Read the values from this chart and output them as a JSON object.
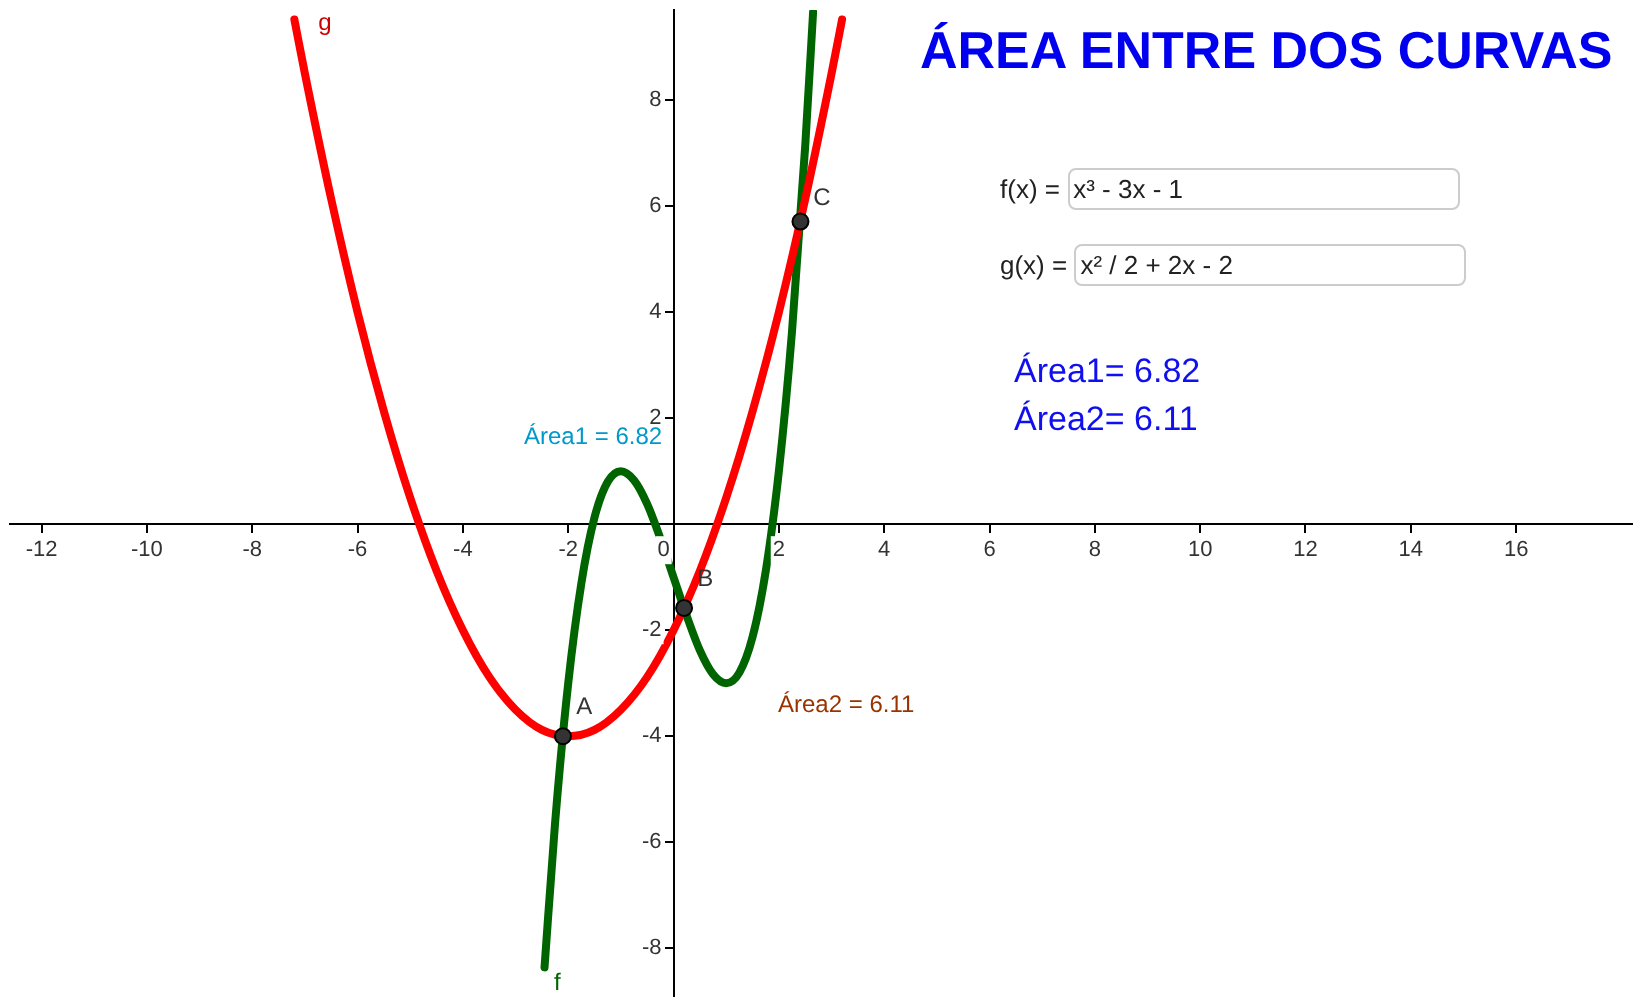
{
  "chart_data": {
    "type": "line",
    "title": "ÁREA ENTRE DOS CURVAS",
    "xlim": [
      -12.6,
      18.2
    ],
    "xticks": [
      -12,
      -10,
      -8,
      -6,
      -4,
      -2,
      0,
      2,
      4,
      6,
      8,
      10,
      12,
      14,
      16
    ],
    "ylim": [
      -8.9,
      9.7
    ],
    "yticks": [
      -8,
      -6,
      -4,
      -2,
      2,
      4,
      6,
      8
    ],
    "grid": false,
    "legend": false,
    "marker": "none",
    "line_style": "solid",
    "series": [
      {
        "color": "#ff0000",
        "x": [
          -7.2,
          -7,
          -6.5,
          -6,
          -5.5,
          -5,
          -4.5,
          -4,
          -3.5,
          -3,
          -2.5,
          -2,
          -1.5,
          -1,
          -0.5,
          0,
          0.5,
          1,
          1.5,
          2,
          2.5,
          3,
          3.2
        ],
        "values": [
          9.52,
          8.5,
          6.13,
          4,
          2.13,
          0.5,
          -0.88,
          -2,
          -2.88,
          -3.5,
          -3.88,
          -4,
          -3.88,
          -3.5,
          -2.88,
          -2,
          -0.88,
          0.5,
          2.13,
          4,
          6.13,
          8.5,
          9.52
        ]
      },
      {
        "color": "#006400",
        "x": [
          -2.45,
          -2.25,
          -2,
          -1.75,
          -1.5,
          -1.25,
          -1,
          -0.75,
          -0.5,
          -0.25,
          0,
          0.25,
          0.5,
          0.75,
          1,
          1.25,
          1.5,
          1.75,
          2,
          2.25,
          2.5,
          2.65
        ],
        "values": [
          -8.36,
          -5.64,
          -3,
          -1.11,
          0.13,
          0.8,
          1,
          0.83,
          0.38,
          -0.27,
          -1,
          -1.73,
          -2.38,
          -2.83,
          -3,
          -2.8,
          -2.13,
          -0.89,
          1,
          3.64,
          7.13,
          9.66
        ]
      },
      {
        "type": "scatter",
        "marker": "circle",
        "color": "#333333",
        "x": [
          -2.1,
          0.2,
          2.41
        ],
        "values": [
          -4,
          -1.58,
          5.71
        ]
      }
    ],
    "annotations": [
      {
        "text": "g",
        "x": -6.9,
        "y": 9.3
      },
      "f",
      {
        "text": "A",
        "x": -2,
        "y": -3.6
      },
      {
        "text": "B",
        "x": 0.3,
        "y": -1.2
      },
      {
        "text": "C",
        "x": 2.5,
        "y": 6
      },
      "Área1 = 6.82",
      "Área2 = 6.11",
      "f(x) = x³ - 3x - 1",
      "g(x) = x² / 2 + 2x - 2",
      "Área1= 6.82",
      "Área2= 6.11"
    ]
  }
}
